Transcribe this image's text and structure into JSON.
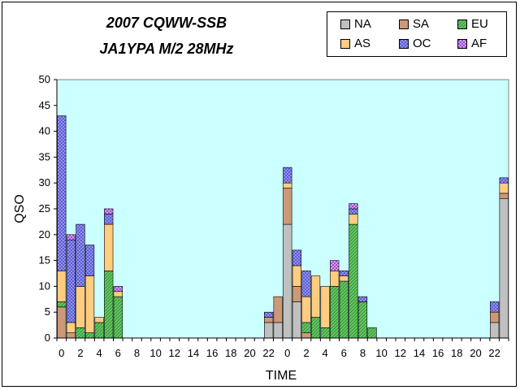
{
  "chart_data": {
    "type": "bar",
    "stacked": true,
    "title": "2007 CQWW-SSB",
    "subtitle": "JA1YPA  M/2  28MHz",
    "xlabel": "TIME",
    "ylabel": "QSO",
    "ylim": [
      0,
      50
    ],
    "yticks": [
      0,
      5,
      10,
      15,
      20,
      25,
      30,
      35,
      40,
      45,
      50
    ],
    "grid": false,
    "legend_position": "top-right",
    "plot_background": "#ccffff",
    "tick_labels": [
      "0",
      "2",
      "4",
      "6",
      "8",
      "10",
      "12",
      "14",
      "16",
      "18",
      "20",
      "22",
      "0",
      "2",
      "4",
      "6",
      "8",
      "10",
      "12",
      "14",
      "16",
      "18",
      "20",
      "22"
    ],
    "categories": [
      "0",
      "1",
      "2",
      "3",
      "4",
      "5",
      "6",
      "7",
      "8",
      "9",
      "10",
      "11",
      "12",
      "13",
      "14",
      "15",
      "16",
      "17",
      "18",
      "19",
      "20",
      "21",
      "22",
      "23",
      "0",
      "1",
      "2",
      "3",
      "4",
      "5",
      "6",
      "7",
      "8",
      "9",
      "10",
      "11",
      "12",
      "13",
      "14",
      "15",
      "16",
      "17",
      "18",
      "19",
      "20",
      "21",
      "22",
      "23"
    ],
    "series": [
      {
        "name": "NA",
        "color": "#c0c0c0",
        "pattern": "solid",
        "values": [
          0,
          0,
          0,
          0,
          0,
          0,
          0,
          0,
          0,
          0,
          0,
          0,
          0,
          0,
          0,
          0,
          0,
          0,
          0,
          0,
          0,
          0,
          3,
          3,
          22,
          7,
          0,
          0,
          0,
          0,
          0,
          0,
          0,
          0,
          0,
          0,
          0,
          0,
          0,
          0,
          0,
          0,
          0,
          0,
          0,
          0,
          3,
          27
        ]
      },
      {
        "name": "SA",
        "color": "#cc9978",
        "pattern": "solid",
        "values": [
          6,
          1,
          0,
          0,
          0,
          0,
          0,
          0,
          0,
          0,
          0,
          0,
          0,
          0,
          0,
          0,
          0,
          0,
          0,
          0,
          0,
          0,
          1,
          5,
          7,
          3,
          1,
          0,
          0,
          0,
          0,
          0,
          0,
          0,
          0,
          0,
          0,
          0,
          0,
          0,
          0,
          0,
          0,
          0,
          0,
          0,
          2,
          1
        ]
      },
      {
        "name": "EU",
        "color": "#66cc66",
        "pattern": "diag",
        "values": [
          1,
          0,
          2,
          1,
          3,
          13,
          8,
          0,
          0,
          0,
          0,
          0,
          0,
          0,
          0,
          0,
          0,
          0,
          0,
          0,
          0,
          0,
          0,
          0,
          0,
          0,
          2,
          4,
          2,
          10,
          11,
          22,
          7,
          2,
          0,
          0,
          0,
          0,
          0,
          0,
          0,
          0,
          0,
          0,
          0,
          0,
          0,
          0
        ]
      },
      {
        "name": "AS",
        "color": "#ffcc80",
        "pattern": "solid",
        "values": [
          6,
          2,
          8,
          11,
          1,
          9,
          1,
          0,
          0,
          0,
          0,
          0,
          0,
          0,
          0,
          0,
          0,
          0,
          0,
          0,
          0,
          0,
          0,
          0,
          1,
          4,
          5,
          8,
          8,
          3,
          1,
          2,
          0,
          0,
          0,
          0,
          0,
          0,
          0,
          0,
          0,
          0,
          0,
          0,
          0,
          0,
          0,
          2
        ]
      },
      {
        "name": "OC",
        "color": "#9999ff",
        "pattern": "cross",
        "values": [
          30,
          16,
          12,
          6,
          0,
          2,
          0,
          0,
          0,
          0,
          0,
          0,
          0,
          0,
          0,
          0,
          0,
          0,
          0,
          0,
          0,
          0,
          1,
          0,
          3,
          3,
          5,
          0,
          0,
          0,
          1,
          1,
          1,
          0,
          0,
          0,
          0,
          0,
          0,
          0,
          0,
          0,
          0,
          0,
          0,
          0,
          2,
          1
        ]
      },
      {
        "name": "AF",
        "color": "#ff99ff",
        "pattern": "cross",
        "values": [
          0,
          1,
          0,
          0,
          0,
          1,
          1,
          0,
          0,
          0,
          0,
          0,
          0,
          0,
          0,
          0,
          0,
          0,
          0,
          0,
          0,
          0,
          0,
          0,
          0,
          0,
          0,
          0,
          0,
          2,
          0,
          1,
          0,
          0,
          0,
          0,
          0,
          0,
          0,
          0,
          0,
          0,
          0,
          0,
          0,
          0,
          0,
          0
        ]
      }
    ]
  }
}
